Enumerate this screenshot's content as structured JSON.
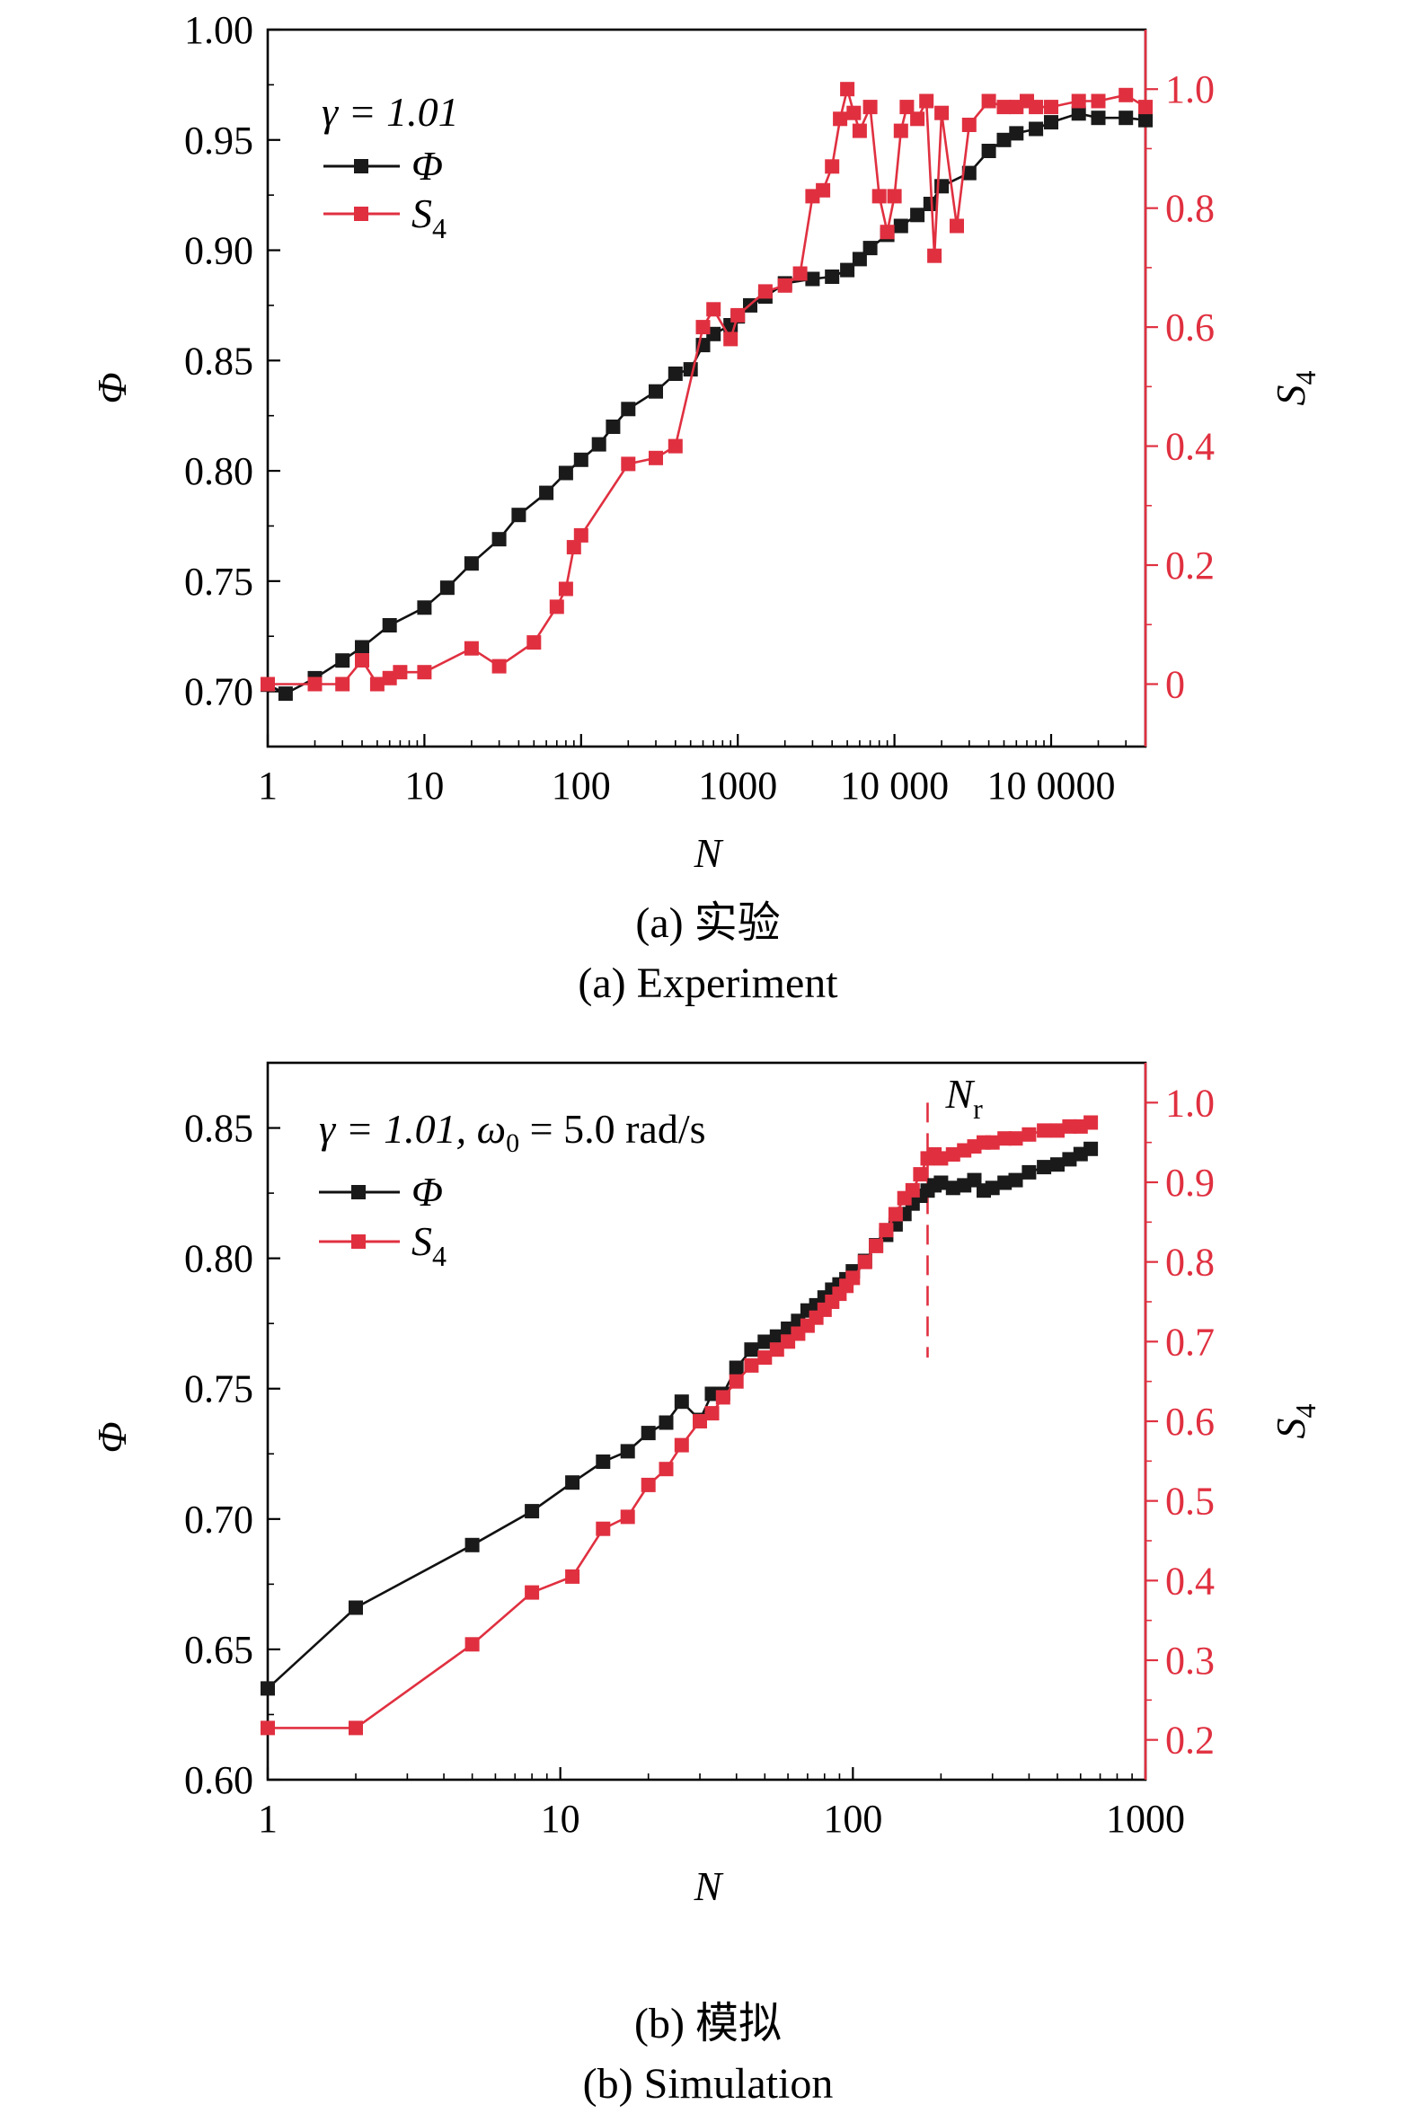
{
  "colors": {
    "phi": "#1a1a1a",
    "s4": "#e03040",
    "axis": "#000000"
  },
  "captions": {
    "a_cn": "(a) 实验",
    "a_en": "(a) Experiment",
    "b_cn": "(b) 模拟",
    "b_en": "(b) Simulation"
  },
  "chart_data": [
    {
      "type": "line",
      "title": "(a) Experiment",
      "xlabel": "N",
      "ylabel": "Φ",
      "y2label": "S",
      "y2label_sub": "4",
      "xscale": "log",
      "xlim": [
        1,
        400000
      ],
      "ylim": [
        0.675,
        1.0
      ],
      "y2lim": [
        -0.105,
        1.1
      ],
      "x_ticks": [
        {
          "v": 1,
          "label": "1"
        },
        {
          "v": 10,
          "label": "10"
        },
        {
          "v": 100,
          "label": "100"
        },
        {
          "v": 1000,
          "label": "1000"
        },
        {
          "v": 10000,
          "label": "10 000"
        },
        {
          "v": 100000,
          "label": "10 0000"
        }
      ],
      "y_ticks": [
        "0.70",
        "0.75",
        "0.80",
        "0.85",
        "0.90",
        "0.95",
        "1.00"
      ],
      "y2_ticks": [
        {
          "v": 0,
          "label": "0"
        },
        {
          "v": 0.2,
          "label": "0.2"
        },
        {
          "v": 0.4,
          "label": "0.4"
        },
        {
          "v": 0.6,
          "label": "0.6"
        },
        {
          "v": 0.8,
          "label": "0.8"
        },
        {
          "v": 1.0,
          "label": "1.0"
        }
      ],
      "legend": {
        "gamma": "γ = 1.01",
        "phi": "Φ",
        "s4": "S",
        "s4_sub": "4"
      },
      "series": [
        {
          "name": "Φ",
          "axis": "left",
          "x": [
            1,
            1.3,
            2,
            3,
            4,
            6,
            10,
            14,
            20,
            30,
            40,
            60,
            80,
            100,
            130,
            160,
            200,
            300,
            400,
            500,
            600,
            700,
            900,
            1000,
            1200,
            1500,
            2000,
            3000,
            4000,
            5000,
            6000,
            7000,
            9000,
            11000,
            14000,
            17000,
            20000,
            30000,
            40000,
            50000,
            60000,
            80000,
            100000,
            150000,
            200000,
            300000,
            400000
          ],
          "y": [
            0.703,
            0.699,
            0.706,
            0.714,
            0.72,
            0.73,
            0.738,
            0.747,
            0.758,
            0.769,
            0.78,
            0.79,
            0.799,
            0.805,
            0.812,
            0.82,
            0.828,
            0.836,
            0.844,
            0.846,
            0.857,
            0.862,
            0.866,
            0.87,
            0.875,
            0.879,
            0.885,
            0.887,
            0.888,
            0.891,
            0.896,
            0.901,
            0.907,
            0.911,
            0.916,
            0.921,
            0.929,
            0.935,
            0.945,
            0.95,
            0.953,
            0.955,
            0.958,
            0.962,
            0.96,
            0.96,
            0.959
          ]
        },
        {
          "name": "S4",
          "axis": "right",
          "x": [
            1,
            2,
            3,
            4,
            5,
            6,
            7,
            10,
            20,
            30,
            50,
            70,
            80,
            90,
            100,
            200,
            300,
            400,
            600,
            700,
            900,
            1000,
            1500,
            2000,
            2500,
            3000,
            3500,
            4000,
            4500,
            5000,
            5500,
            6000,
            7000,
            8000,
            9000,
            10000,
            11000,
            12000,
            14000,
            16000,
            18000,
            20000,
            25000,
            30000,
            40000,
            50000,
            60000,
            70000,
            80000,
            100000,
            150000,
            200000,
            300000,
            400000
          ],
          "y": [
            0,
            0,
            0,
            0.04,
            0,
            0.01,
            0.02,
            0.02,
            0.06,
            0.03,
            0.07,
            0.13,
            0.16,
            0.23,
            0.25,
            0.37,
            0.38,
            0.4,
            0.6,
            0.63,
            0.58,
            0.62,
            0.66,
            0.67,
            0.69,
            0.82,
            0.83,
            0.87,
            0.95,
            1.0,
            0.96,
            0.93,
            0.97,
            0.82,
            0.76,
            0.82,
            0.93,
            0.97,
            0.95,
            0.98,
            0.72,
            0.96,
            0.77,
            0.94,
            0.98,
            0.97,
            0.97,
            0.98,
            0.97,
            0.97,
            0.98,
            0.98,
            0.99,
            0.97
          ]
        }
      ]
    },
    {
      "type": "line",
      "title": "(b) Simulation",
      "xlabel": "N",
      "ylabel": "Φ",
      "y2label": "S",
      "y2label_sub": "4",
      "xscale": "log",
      "xlim": [
        1,
        1000
      ],
      "ylim": [
        0.6,
        0.875
      ],
      "y2lim": [
        0.15,
        1.05
      ],
      "x_ticks": [
        {
          "v": 1,
          "label": "1"
        },
        {
          "v": 10,
          "label": "10"
        },
        {
          "v": 100,
          "label": "100"
        },
        {
          "v": 1000,
          "label": "1000"
        }
      ],
      "y_ticks": [
        "0.60",
        "0.65",
        "0.70",
        "0.75",
        "0.80",
        "0.85"
      ],
      "y2_ticks": [
        {
          "v": 0.2,
          "label": "0.2"
        },
        {
          "v": 0.3,
          "label": "0.3"
        },
        {
          "v": 0.4,
          "label": "0.4"
        },
        {
          "v": 0.5,
          "label": "0.5"
        },
        {
          "v": 0.6,
          "label": "0.6"
        },
        {
          "v": 0.7,
          "label": "0.7"
        },
        {
          "v": 0.8,
          "label": "0.8"
        },
        {
          "v": 0.9,
          "label": "0.9"
        },
        {
          "v": 1.0,
          "label": "1.0"
        }
      ],
      "legend": {
        "gamma": "γ = 1.01, ω",
        "omega_sub": "0",
        "gamma_rest": " = 5.0 rad/s",
        "phi": "Φ",
        "s4": "S",
        "s4_sub": "4"
      },
      "annotation": {
        "text": "N",
        "sub": "r",
        "x": 180
      },
      "series": [
        {
          "name": "Φ",
          "axis": "left",
          "x": [
            1,
            2,
            5,
            8,
            11,
            14,
            17,
            20,
            23,
            26,
            30,
            33,
            36,
            40,
            45,
            50,
            55,
            60,
            65,
            70,
            75,
            80,
            85,
            90,
            95,
            100,
            110,
            120,
            130,
            140,
            150,
            160,
            170,
            180,
            190,
            200,
            220,
            240,
            260,
            280,
            300,
            330,
            360,
            400,
            450,
            500,
            550,
            600,
            650
          ],
          "y": [
            0.635,
            0.666,
            0.69,
            0.703,
            0.714,
            0.722,
            0.726,
            0.733,
            0.737,
            0.745,
            0.738,
            0.748,
            0.748,
            0.758,
            0.765,
            0.768,
            0.77,
            0.773,
            0.776,
            0.78,
            0.782,
            0.785,
            0.788,
            0.79,
            0.792,
            0.795,
            0.799,
            0.805,
            0.809,
            0.813,
            0.817,
            0.821,
            0.824,
            0.826,
            0.828,
            0.829,
            0.827,
            0.828,
            0.83,
            0.826,
            0.827,
            0.829,
            0.83,
            0.833,
            0.835,
            0.836,
            0.838,
            0.84,
            0.842
          ]
        },
        {
          "name": "S4",
          "axis": "right",
          "x": [
            1,
            2,
            5,
            8,
            11,
            14,
            17,
            20,
            23,
            26,
            30,
            33,
            36,
            40,
            45,
            50,
            55,
            60,
            65,
            70,
            75,
            80,
            85,
            90,
            95,
            100,
            110,
            120,
            130,
            140,
            150,
            160,
            170,
            180,
            190,
            200,
            220,
            240,
            260,
            280,
            300,
            330,
            360,
            400,
            450,
            500,
            550,
            600,
            650
          ],
          "y": [
            0.215,
            0.215,
            0.32,
            0.385,
            0.405,
            0.465,
            0.48,
            0.52,
            0.54,
            0.57,
            0.6,
            0.61,
            0.63,
            0.65,
            0.67,
            0.68,
            0.69,
            0.7,
            0.71,
            0.72,
            0.73,
            0.74,
            0.75,
            0.76,
            0.77,
            0.78,
            0.8,
            0.82,
            0.84,
            0.86,
            0.88,
            0.89,
            0.91,
            0.93,
            0.935,
            0.93,
            0.935,
            0.94,
            0.945,
            0.95,
            0.95,
            0.955,
            0.955,
            0.96,
            0.965,
            0.965,
            0.97,
            0.97,
            0.975
          ]
        }
      ]
    }
  ]
}
